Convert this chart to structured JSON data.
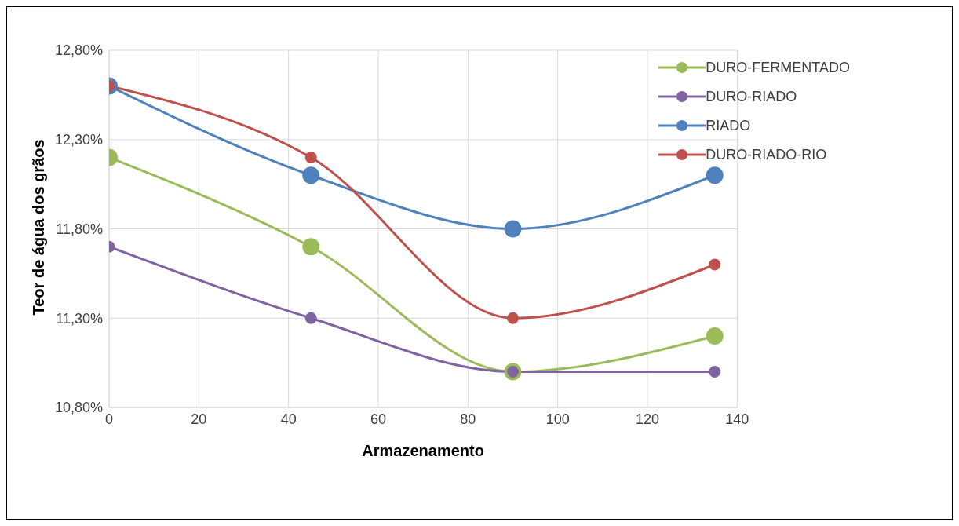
{
  "chart_data": {
    "type": "line",
    "xlabel": "Armazenamento",
    "ylabel": "Teor de água dos grãos",
    "x": [
      0,
      45,
      90,
      135
    ],
    "series": [
      {
        "name": "DURO-FERMENTADO",
        "color": "#9bbb59",
        "values": [
          12.2,
          11.7,
          11.0,
          11.2
        ]
      },
      {
        "name": "DURO-RIADO",
        "color": "#8064a2",
        "values": [
          11.7,
          11.3,
          11.0,
          11.0
        ]
      },
      {
        "name": "RIADO",
        "color": "#4f81bd",
        "values": [
          12.6,
          12.1,
          11.8,
          12.1
        ]
      },
      {
        "name": "DURO-RIADO-RIO",
        "color": "#c0504d",
        "values": [
          12.6,
          12.2,
          11.3,
          11.6
        ]
      }
    ],
    "xlim": [
      0,
      140
    ],
    "xticks": [
      0,
      20,
      40,
      60,
      80,
      100,
      120,
      140
    ],
    "ylim": [
      10.8,
      12.8
    ],
    "yticks": [
      {
        "value": 10.8,
        "label": "10,80%"
      },
      {
        "value": 11.3,
        "label": "11,30%"
      },
      {
        "value": 11.8,
        "label": "11,80%"
      },
      {
        "value": 12.3,
        "label": "12,30%"
      },
      {
        "value": 12.8,
        "label": "12,80%"
      }
    ],
    "grid": true,
    "legend": "top right",
    "marker": "circle",
    "line_style": "solid"
  }
}
